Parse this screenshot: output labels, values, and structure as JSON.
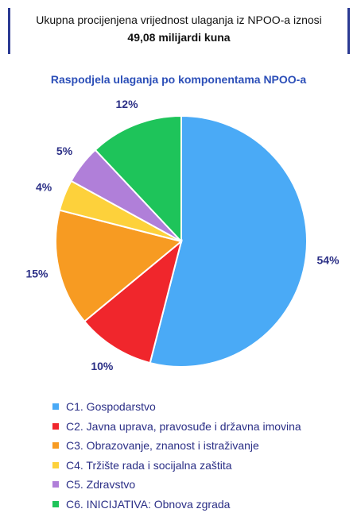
{
  "header": {
    "line1": "Ukupna procijenjena vrijednost ulaganja iz NPOO-a iznosi",
    "line2": "49,08 milijardi kuna"
  },
  "chart_data": {
    "type": "pie",
    "title": "Raspodjela ulaganja po komponentama NPOO-a",
    "slices": [
      {
        "name": "C1. Gospodarstvo",
        "value": 54,
        "label": "54%",
        "color": "#4aaaf6"
      },
      {
        "name": "C2. Javna uprava, pravosuđe i državna imovina",
        "value": 10,
        "label": "10%",
        "color": "#f0262c"
      },
      {
        "name": "C3. Obrazovanje, znanost i istraživanje",
        "value": 15,
        "label": "15%",
        "color": "#f79b22"
      },
      {
        "name": "C4. Tržište rada i socijalna zaštita",
        "value": 4,
        "label": "4%",
        "color": "#fdd13b"
      },
      {
        "name": "C5. Zdravstvo",
        "value": 5,
        "label": "5%",
        "color": "#b07fd9"
      },
      {
        "name": "C6. INICIJATIVA: Obnova zgrada",
        "value": 12,
        "label": "12%",
        "color": "#1ec45a"
      }
    ],
    "legend_position": "bottom"
  }
}
